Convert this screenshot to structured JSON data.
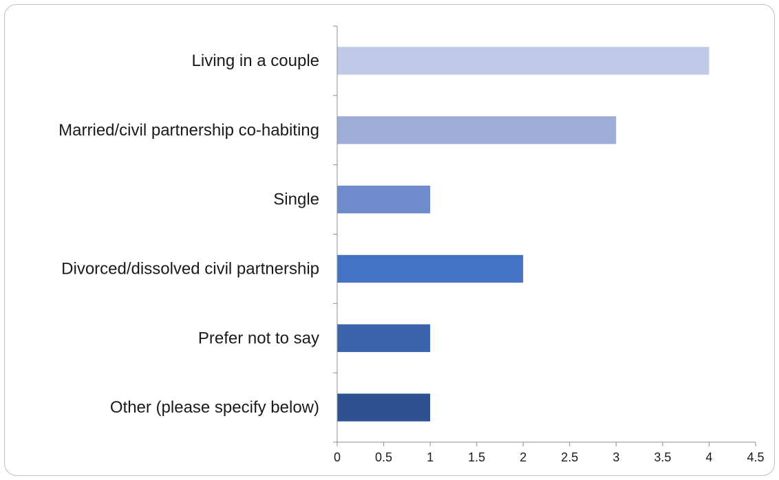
{
  "chart_data": {
    "type": "bar",
    "orientation": "horizontal",
    "title": "",
    "xlabel": "",
    "ylabel": "",
    "categories": [
      "Living in a couple",
      "Married/civil partnership co-habiting",
      "Single",
      "Divorced/dissolved civil partnership",
      "Prefer not to say",
      "Other (please specify below)"
    ],
    "values": [
      4,
      3,
      1,
      2,
      1,
      1
    ],
    "bar_colors": [
      "#c0cae6",
      "#9dadd8",
      "#6f8bcc",
      "#4472c4",
      "#3a63ad",
      "#2e5290"
    ],
    "xlim": [
      0,
      4.5
    ],
    "xticks": [
      "0",
      "0.5",
      "1",
      "1.5",
      "2",
      "2.5",
      "3",
      "3.5",
      "4",
      "4.5"
    ],
    "grid": false,
    "legend": "none"
  }
}
